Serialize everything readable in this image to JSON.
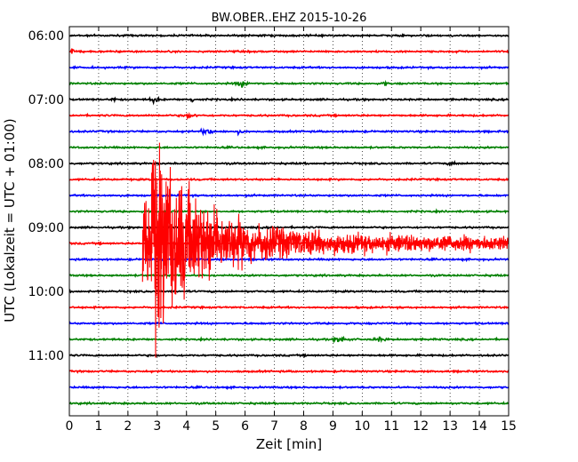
{
  "chart_data": {
    "type": "line",
    "title": "BW.OBER..EHZ 2015-10-26",
    "xlabel": "Zeit  [min]",
    "ylabel": "UTC (Lokalzeit = UTC + 01:00)",
    "xlim": [
      0,
      15
    ],
    "x_ticks": [
      0,
      1,
      2,
      3,
      4,
      5,
      6,
      7,
      8,
      9,
      10,
      11,
      12,
      13,
      14,
      15
    ],
    "y_tick_labels": [
      "06:00",
      "07:00",
      "08:00",
      "09:00",
      "10:00",
      "11:00"
    ],
    "grid": true,
    "trace_interval_min": 15,
    "trace_colors_cycle": [
      "#000000",
      "#ff0000",
      "#0000ff",
      "#008000"
    ],
    "trace_times": [
      "06:00",
      "06:15",
      "06:30",
      "06:45",
      "07:00",
      "07:15",
      "07:30",
      "07:45",
      "08:00",
      "08:15",
      "08:30",
      "08:45",
      "09:00",
      "09:15",
      "09:30",
      "09:45",
      "10:00",
      "10:15",
      "10:30",
      "10:45",
      "11:00",
      "11:15",
      "11:30",
      "11:45"
    ],
    "events": [
      {
        "trace": "06:15",
        "t_min": 0.1,
        "amp": 1.2,
        "width_min": 0.08
      },
      {
        "trace": "06:45",
        "t_min": 5.9,
        "amp": 1.0,
        "width_min": 0.35
      },
      {
        "trace": "06:45",
        "t_min": 10.8,
        "amp": 1.1,
        "width_min": 0.1
      },
      {
        "trace": "07:00",
        "t_min": 1.5,
        "amp": 1.0,
        "width_min": 0.1
      },
      {
        "trace": "07:00",
        "t_min": 2.9,
        "amp": 1.3,
        "width_min": 0.2
      },
      {
        "trace": "07:00",
        "t_min": 4.2,
        "amp": 1.0,
        "width_min": 0.1
      },
      {
        "trace": "07:15",
        "t_min": 4.1,
        "amp": 0.8,
        "width_min": 0.3
      },
      {
        "trace": "07:30",
        "t_min": 4.7,
        "amp": 1.1,
        "width_min": 0.3
      },
      {
        "trace": "07:30",
        "t_min": 5.8,
        "amp": 0.7,
        "width_min": 0.2
      },
      {
        "trace": "08:00",
        "t_min": 13.1,
        "amp": 0.8,
        "width_min": 0.2
      },
      {
        "trace": "10:45",
        "t_min": 9.3,
        "amp": 1.1,
        "width_min": 0.35
      },
      {
        "trace": "10:45",
        "t_min": 10.6,
        "amp": 0.7,
        "width_min": 0.3
      }
    ],
    "large_event": {
      "trace": "09:15",
      "onset_min": 2.5,
      "peak_min": 2.8,
      "decay_end_min": 15,
      "color": "#ff0000"
    }
  }
}
